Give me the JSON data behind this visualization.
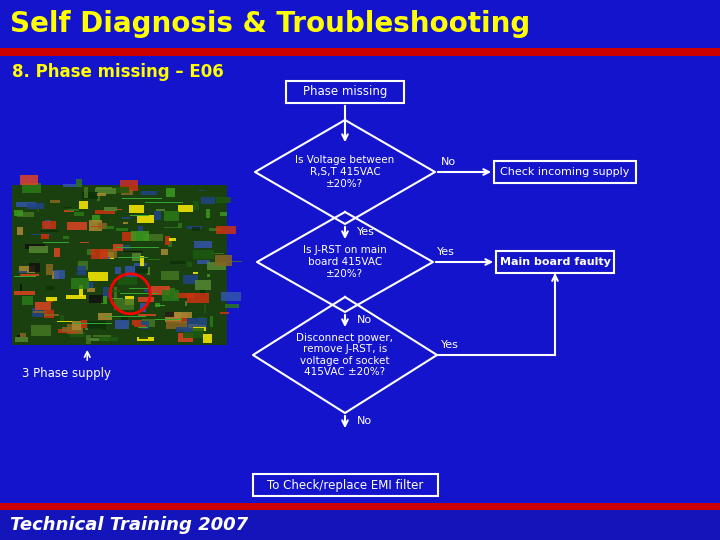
{
  "title": "Self Diagnosis & Troubleshooting",
  "subtitle": "8. Phase missing – E06",
  "footer": "Technical Training 2007",
  "bg_color": "#1414cc",
  "title_bg": "#1414cc",
  "title_color": "#ffff00",
  "subtitle_color": "#ffff00",
  "footer_color": "#ffffff",
  "flowchart": {
    "start_box": "Phase missing",
    "diamond1": "Is Voltage between\nR,S,T 415VAC\n±20%?",
    "diamond1_no": "Check incoming supply",
    "diamond2": "Is J-RST on main\nboard 415VAC\n±20%?",
    "diamond2_yes": "Main board faulty",
    "diamond3": "Disconnect power,\nremove J-RST, is\nvoltage of socket\n415VAC ±20%?",
    "end_box": "To Check/replace EMI filter"
  },
  "box_color": "#1414cc",
  "box_edge": "#ffffff",
  "text_color": "#ffffff",
  "arrow_color": "#ffffff",
  "red_stripe": "#cc0000"
}
